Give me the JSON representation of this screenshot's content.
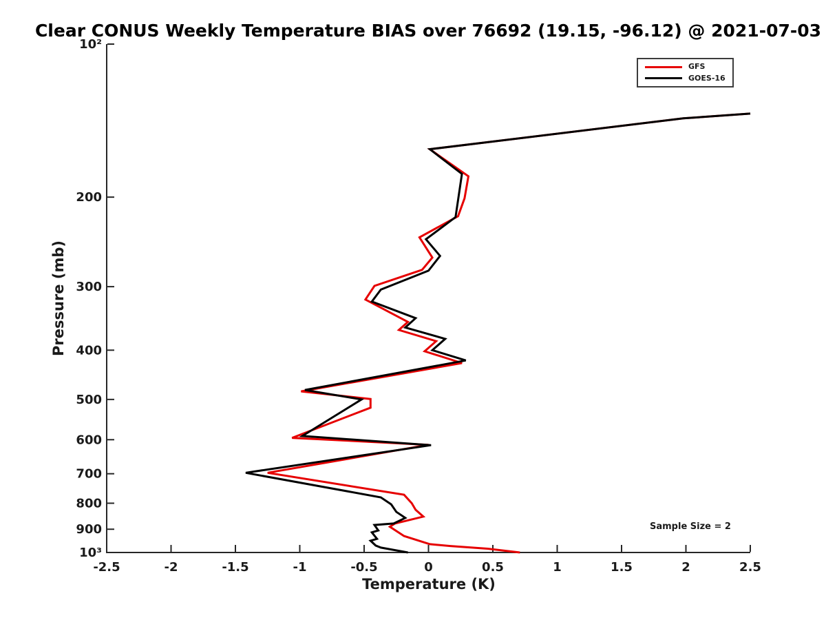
{
  "figure": {
    "background": "#ffffff"
  },
  "chart_data": {
    "type": "line",
    "title": "Clear CONUS Weekly Temperature BIAS over 76692 (19.15, -96.12) @ 2021-07-03",
    "xlabel": "Temperature (K)",
    "ylabel": "Pressure (mb)",
    "xlim": [
      -2.5,
      2.5
    ],
    "ylim_mb": [
      100,
      1000
    ],
    "y_scale": "log10",
    "grid": false,
    "axis_color": "#262626",
    "text_color": "#1a1a1a",
    "x_ticks": [
      -2.5,
      -2,
      -1.5,
      -1,
      -0.5,
      0,
      0.5,
      1,
      1.5,
      2,
      2.5
    ],
    "x_tick_labels": [
      "-2.5",
      "-2",
      "-1.5",
      "-1",
      "-0.5",
      "0",
      "0.5",
      "1",
      "1.5",
      "2",
      "2.5"
    ],
    "y_ticks": [
      100,
      200,
      300,
      400,
      500,
      600,
      700,
      800,
      900,
      1000
    ],
    "y_tick_labels": [
      "10²",
      "200",
      "300",
      "400",
      "500",
      "600",
      "700",
      "800",
      "900",
      "10³"
    ],
    "legend_position": "upper right",
    "annotation": "Sample Size = 2",
    "series": [
      {
        "name": "GFS",
        "color": "#e60000",
        "line_width": 3,
        "points": [
          [
            2.5,
            137
          ],
          [
            1.98,
            140
          ],
          [
            0.01,
            161
          ],
          [
            0.31,
            182
          ],
          [
            0.28,
            201
          ],
          [
            0.23,
            218
          ],
          [
            -0.07,
            240
          ],
          [
            0.03,
            263
          ],
          [
            -0.05,
            278
          ],
          [
            -0.42,
            299
          ],
          [
            -0.49,
            318
          ],
          [
            -0.16,
            352
          ],
          [
            -0.23,
            365
          ],
          [
            0.06,
            384
          ],
          [
            -0.03,
            402
          ],
          [
            0.26,
            424
          ],
          [
            -0.99,
            482
          ],
          [
            -0.45,
            499
          ],
          [
            -0.45,
            519
          ],
          [
            -1.06,
            595
          ],
          [
            0.0,
            614
          ],
          [
            -1.25,
            697
          ],
          [
            -0.19,
            770
          ],
          [
            -0.13,
            800
          ],
          [
            -0.1,
            824
          ],
          [
            -0.04,
            850
          ],
          [
            -0.26,
            877
          ],
          [
            -0.3,
            890
          ],
          [
            -0.19,
            928
          ],
          [
            0.01,
            963
          ],
          [
            0.17,
            971
          ],
          [
            0.46,
            983
          ],
          [
            0.71,
            1000
          ]
        ]
      },
      {
        "name": "GOES-16",
        "color": "#000000",
        "line_width": 3,
        "points": [
          [
            2.5,
            137
          ],
          [
            1.98,
            140
          ],
          [
            0.01,
            161
          ],
          [
            0.26,
            180
          ],
          [
            0.21,
            219
          ],
          [
            -0.02,
            242
          ],
          [
            0.09,
            261
          ],
          [
            0.0,
            279
          ],
          [
            -0.37,
            304
          ],
          [
            -0.44,
            321
          ],
          [
            -0.1,
            346
          ],
          [
            -0.18,
            361
          ],
          [
            0.13,
            380
          ],
          [
            0.03,
            400
          ],
          [
            0.29,
            419
          ],
          [
            -0.96,
            479
          ],
          [
            -0.52,
            500
          ],
          [
            -0.98,
            590
          ],
          [
            0.02,
            615
          ],
          [
            -1.42,
            697
          ],
          [
            -0.37,
            779
          ],
          [
            -0.29,
            804
          ],
          [
            -0.25,
            832
          ],
          [
            -0.18,
            855
          ],
          [
            -0.27,
            877
          ],
          [
            -0.42,
            883
          ],
          [
            -0.39,
            905
          ],
          [
            -0.44,
            913
          ],
          [
            -0.4,
            940
          ],
          [
            -0.45,
            948
          ],
          [
            -0.41,
            969
          ],
          [
            -0.37,
            978
          ],
          [
            -0.16,
            1000
          ]
        ]
      }
    ]
  }
}
